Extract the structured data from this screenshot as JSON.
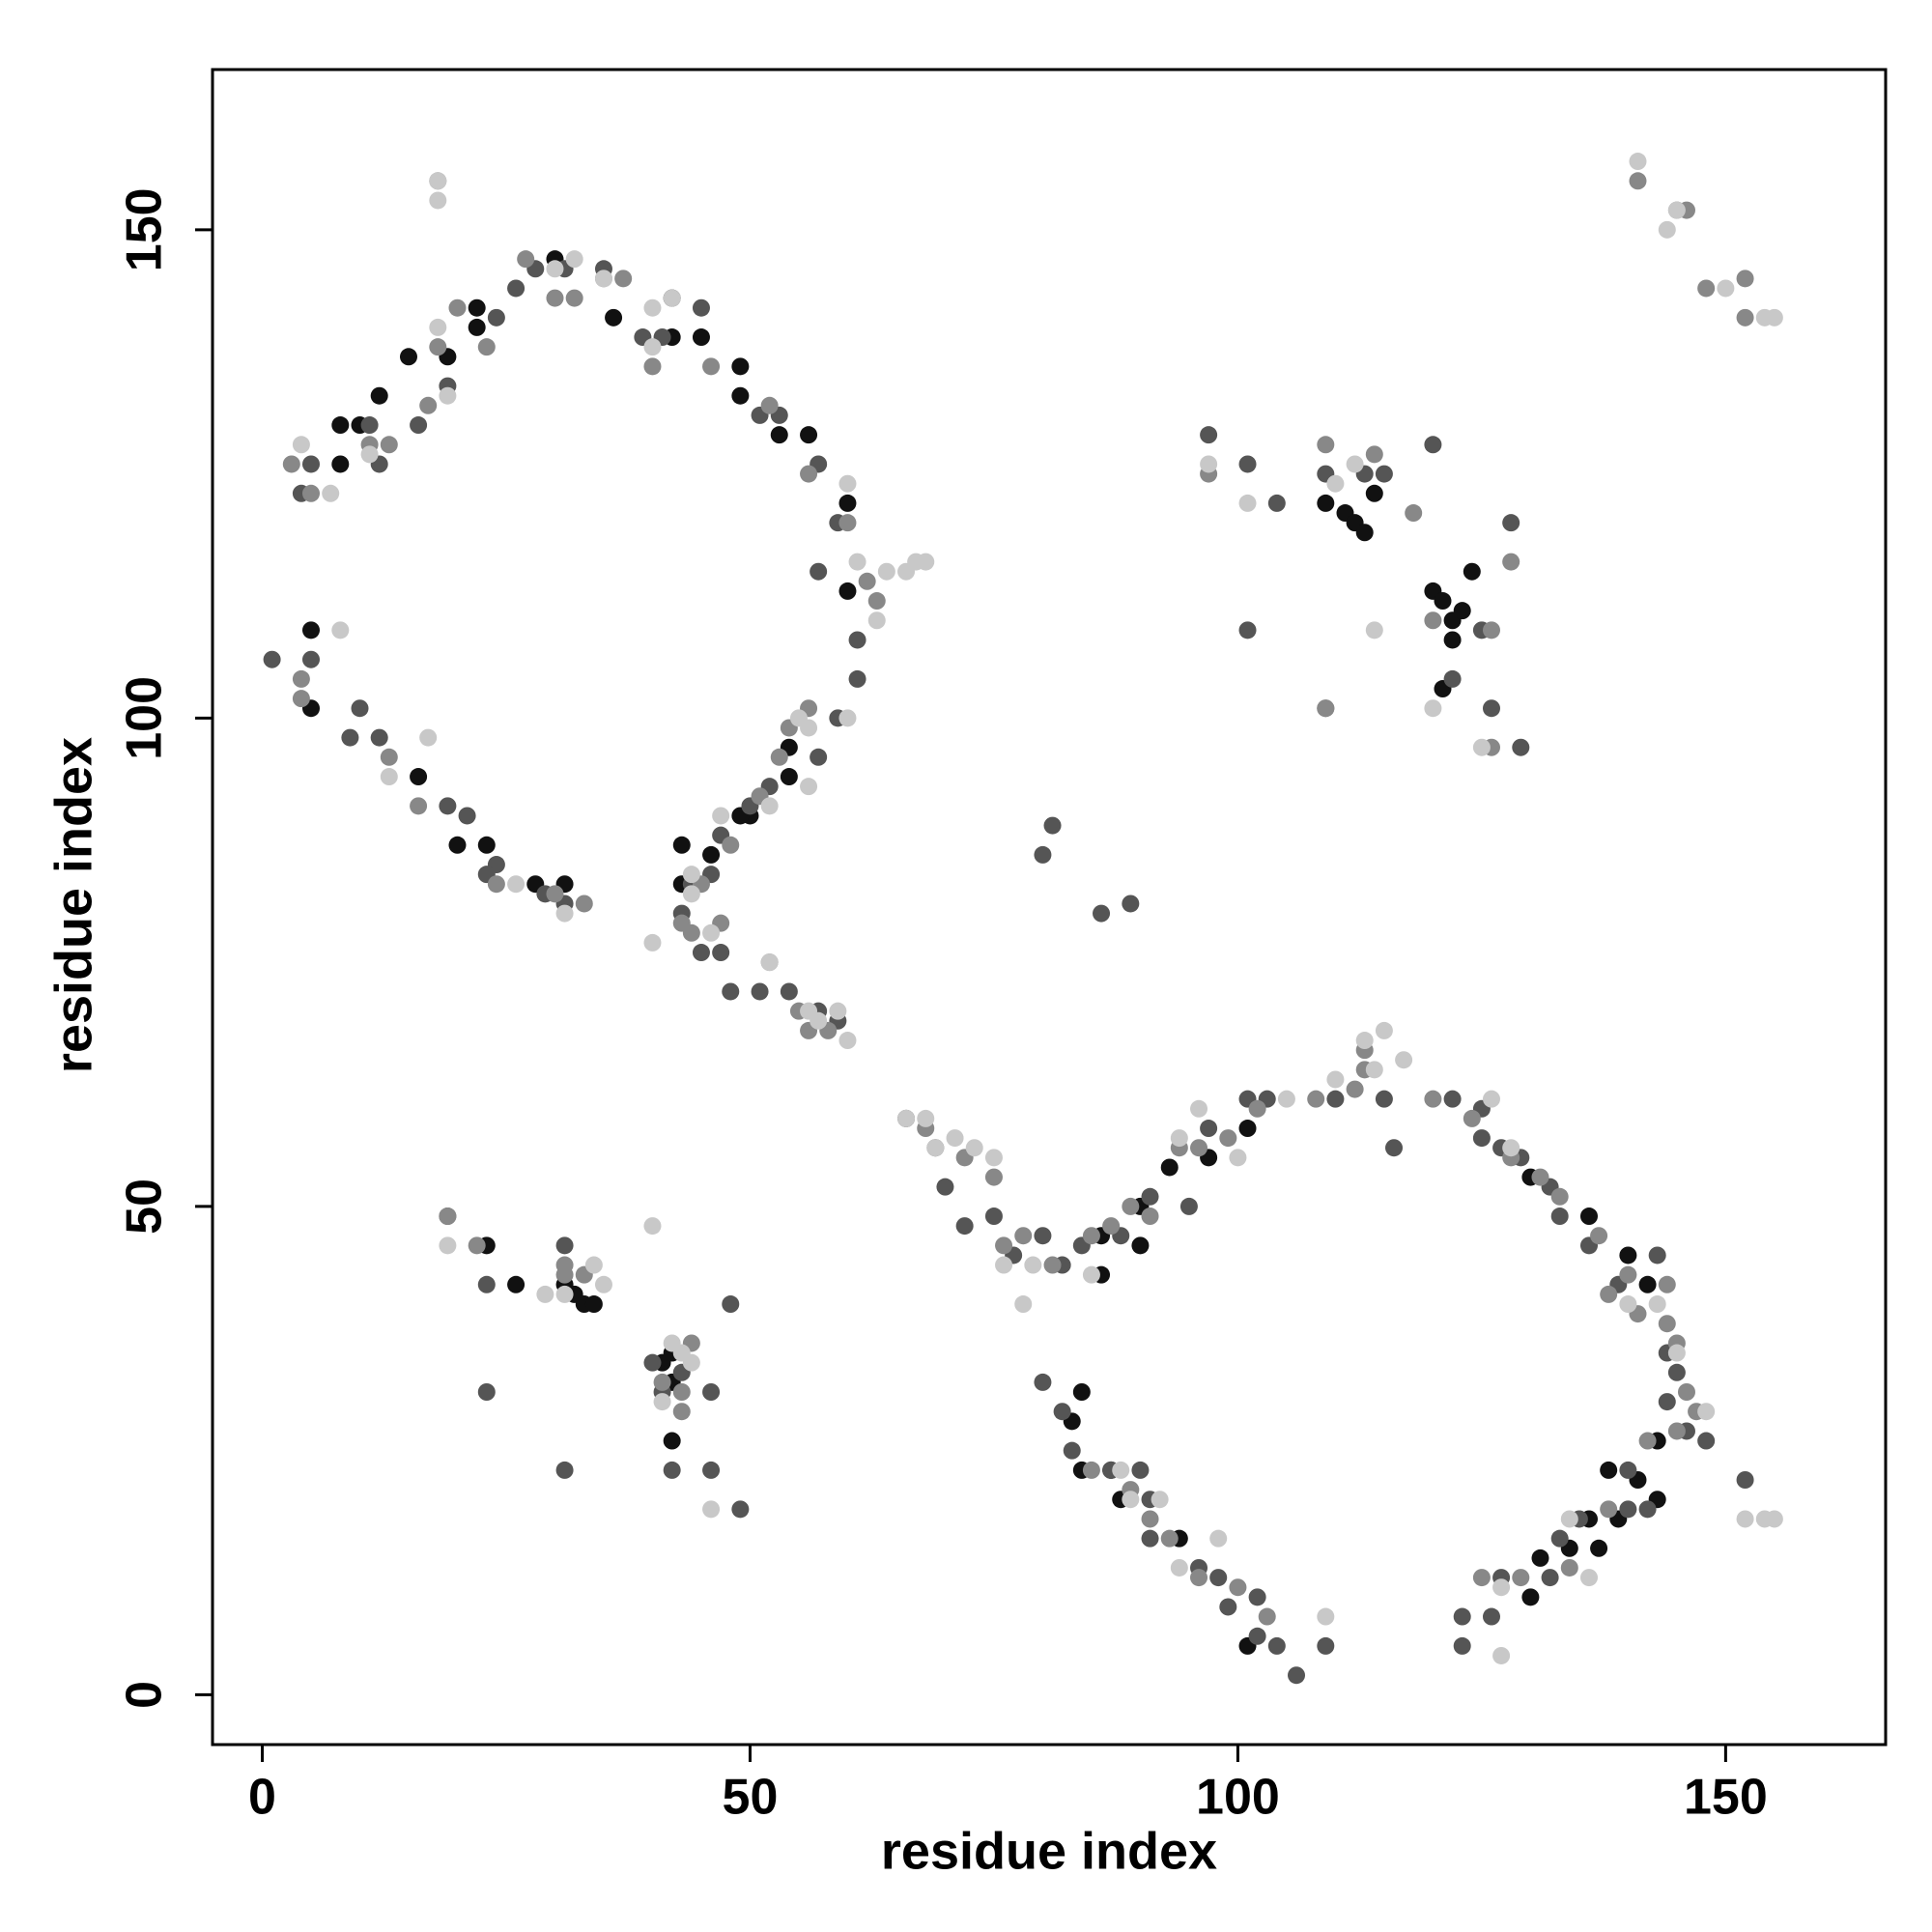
{
  "chart_data": {
    "type": "scatter",
    "xlabel": "residue index",
    "ylabel": "residue index",
    "xlim": [
      -5.1,
      166.4
    ],
    "ylim": [
      -5.1,
      166.4
    ],
    "xticks": [
      0,
      50,
      100,
      150
    ],
    "yticks": [
      0,
      50,
      100,
      150
    ],
    "series": [
      {
        "color": "#111111",
        "x": [
          8,
          12,
          15,
          19,
          22,
          22,
          30,
          42,
          42,
          45,
          49,
          49,
          53,
          56,
          60,
          60,
          54,
          54,
          50,
          49,
          46,
          43,
          43,
          16,
          20,
          23,
          28,
          31,
          109,
          111,
          112,
          113,
          114,
          120,
          121,
          122,
          122,
          123,
          124,
          121,
          84,
          83,
          84,
          87,
          88,
          94,
          101,
          130,
          131,
          134,
          136,
          137,
          139,
          141,
          143,
          143,
          138,
          140,
          142,
          136,
          130,
          86,
          86,
          90,
          90,
          93,
          97,
          101,
          42,
          41,
          42,
          31,
          32,
          33,
          34,
          26,
          23,
          42,
          8,
          10,
          5,
          5,
          36
        ],
        "y": [
          130,
          133,
          137,
          137,
          142,
          140,
          147,
          143,
          139,
          139,
          136,
          133,
          129,
          129,
          122,
          113,
          97,
          94,
          90,
          90,
          86,
          87,
          83,
          94,
          87,
          87,
          83,
          83,
          122,
          121,
          120,
          119,
          123,
          113,
          112,
          110,
          108,
          111,
          115,
          103,
          31,
          28,
          23,
          23,
          20,
          16,
          5,
          10,
          14,
          15,
          18,
          15,
          18,
          22,
          26,
          20,
          23,
          45,
          42,
          49,
          53,
          47,
          43,
          50,
          46,
          54,
          55,
          58,
          32,
          34,
          35,
          42,
          41,
          40,
          40,
          42,
          46,
          26,
          126,
          130,
          109,
          101,
          141
        ]
      },
      {
        "color": "#555555",
        "x": [
          4,
          5,
          12,
          11,
          16,
          19,
          26,
          24,
          28,
          31,
          35,
          39,
          41,
          45,
          51,
          53,
          57,
          59,
          57,
          61,
          61,
          59,
          57,
          52,
          50,
          47,
          46,
          44,
          43,
          45,
          47,
          48,
          51,
          54,
          57,
          59,
          1,
          5,
          10,
          12,
          9,
          19,
          21,
          24,
          23,
          29,
          31,
          97,
          101,
          104,
          109,
          113,
          115,
          120,
          128,
          126,
          129,
          122,
          109,
          101,
          125,
          80,
          81,
          86,
          89,
          66,
          69,
          70,
          72,
          75,
          77,
          80,
          82,
          84,
          88,
          91,
          95,
          97,
          101,
          103,
          110,
          115,
          116,
          122,
          125,
          125,
          127,
          129,
          132,
          133,
          136,
          139,
          143,
          144,
          145,
          144,
          146,
          148,
          152,
          80,
          82,
          83,
          87,
          90,
          91,
          91,
          96,
          98,
          99,
          102,
          102,
          104,
          106,
          109,
          123,
          123,
          126,
          127,
          132,
          133,
          135,
          140,
          140,
          142,
          19,
          23,
          23,
          31,
          31,
          40,
          42,
          46,
          46,
          49,
          48,
          41,
          43
        ],
        "y": [
          123,
          126,
          126,
          130,
          130,
          134,
          144,
          141,
          146,
          146,
          146,
          139,
          139,
          142,
          131,
          131,
          126,
          120,
          115,
          108,
          104,
          100,
          96,
          93,
          91,
          88,
          84,
          83,
          80,
          76,
          76,
          72,
          72,
          72,
          70,
          69,
          106,
          106,
          101,
          98,
          98,
          91,
          90,
          85,
          84,
          82,
          81,
          129,
          126,
          122,
          125,
          125,
          125,
          128,
          120,
          101,
          97,
          104,
          101,
          109,
          109,
          86,
          89,
          80,
          81,
          59,
          56,
          52,
          48,
          49,
          45,
          47,
          44,
          46,
          47,
          51,
          50,
          58,
          61,
          61,
          61,
          61,
          56,
          61,
          60,
          57,
          56,
          55,
          52,
          49,
          46,
          42,
          45,
          35,
          33,
          30,
          27,
          26,
          22,
          32,
          29,
          25,
          23,
          23,
          20,
          16,
          13,
          12,
          9,
          10,
          6,
          5,
          2,
          5,
          5,
          8,
          8,
          12,
          12,
          16,
          18,
          19,
          23,
          19,
          49,
          42,
          31,
          46,
          23,
          34,
          23,
          31,
          23,
          19,
          40,
          31,
          33
        ]
      },
      {
        "color": "#888888",
        "x": [
          3,
          5,
          11,
          13,
          17,
          18,
          20,
          23,
          27,
          30,
          32,
          35,
          37,
          40,
          46,
          52,
          56,
          60,
          63,
          62,
          54,
          56,
          53,
          51,
          48,
          45,
          43,
          44,
          47,
          52,
          55,
          56,
          58,
          4,
          4,
          13,
          16,
          24,
          30,
          33,
          97,
          109,
          114,
          118,
          128,
          120,
          126,
          126,
          109,
          66,
          68,
          72,
          75,
          76,
          78,
          81,
          85,
          87,
          89,
          91,
          94,
          96,
          99,
          102,
          108,
          112,
          113,
          113,
          120,
          124,
          128,
          131,
          133,
          137,
          140,
          141,
          144,
          145,
          146,
          147,
          85,
          89,
          91,
          93,
          96,
          100,
          103,
          125,
          129,
          134,
          138,
          141,
          145,
          148,
          152,
          152,
          146,
          18,
          19,
          22,
          31,
          33,
          43,
          44,
          41,
          43,
          145,
          144,
          138,
          142,
          31
        ],
        "y": [
          126,
          123,
          128,
          128,
          132,
          138,
          142,
          138,
          147,
          143,
          143,
          145,
          145,
          136,
          136,
          132,
          125,
          120,
          112,
          114,
          99,
          101,
          96,
          92,
          87,
          83,
          79,
          78,
          79,
          75,
          70,
          68,
          68,
          104,
          102,
          96,
          91,
          83,
          82,
          81,
          125,
          128,
          127,
          121,
          116,
          110,
          109,
          97,
          101,
          59,
          58,
          55,
          53,
          46,
          47,
          44,
          47,
          48,
          50,
          49,
          56,
          56,
          57,
          60,
          61,
          62,
          64,
          66,
          61,
          59,
          55,
          53,
          51,
          47,
          43,
          39,
          38,
          36,
          31,
          29,
          23,
          21,
          18,
          16,
          12,
          11,
          8,
          12,
          12,
          13,
          19,
          155,
          152,
          144,
          145,
          141,
          152,
          155,
          49,
          46,
          43,
          43,
          31,
          36,
          32,
          29,
          27,
          42,
          41,
          26,
          44
        ]
      },
      {
        "color": "#c8c8c8",
        "x": [
          4,
          7,
          11,
          18,
          19,
          18,
          18,
          30,
          32,
          35,
          40,
          40,
          42,
          60,
          61,
          64,
          66,
          67,
          68,
          63,
          60,
          55,
          56,
          56,
          52,
          47,
          44,
          44,
          40,
          46,
          52,
          56,
          57,
          59,
          60,
          8,
          17,
          13,
          26,
          31,
          101,
          97,
          112,
          110,
          120,
          125,
          114,
          66,
          68,
          69,
          71,
          73,
          75,
          76,
          78,
          79,
          85,
          94,
          96,
          100,
          105,
          110,
          113,
          115,
          114,
          117,
          126,
          128,
          140,
          143,
          145,
          148,
          152,
          154,
          155,
          141,
          144,
          145,
          150,
          154,
          155,
          88,
          89,
          92,
          94,
          98,
          109,
          127,
          127,
          136,
          134,
          19,
          29,
          31,
          35,
          34,
          40,
          41,
          44,
          46,
          43,
          42
        ],
        "y": [
          128,
          123,
          127,
          140,
          133,
          153,
          155,
          146,
          147,
          145,
          142,
          138,
          143,
          124,
          116,
          115,
          115,
          116,
          116,
          110,
          100,
          100,
          93,
          99,
          91,
          90,
          82,
          84,
          77,
          78,
          75,
          70,
          69,
          70,
          67,
          109,
          98,
          94,
          83,
          80,
          122,
          126,
          126,
          124,
          101,
          97,
          109,
          59,
          59,
          56,
          57,
          56,
          55,
          44,
          40,
          44,
          43,
          57,
          60,
          55,
          61,
          63,
          67,
          68,
          64,
          65,
          61,
          56,
          40,
          40,
          35,
          29,
          18,
          18,
          18,
          157,
          150,
          152,
          144,
          141,
          141,
          23,
          20,
          20,
          13,
          16,
          8,
          4,
          11,
          12,
          18,
          46,
          41,
          41,
          42,
          44,
          48,
          30,
          34,
          19,
          35,
          36
        ]
      }
    ]
  }
}
